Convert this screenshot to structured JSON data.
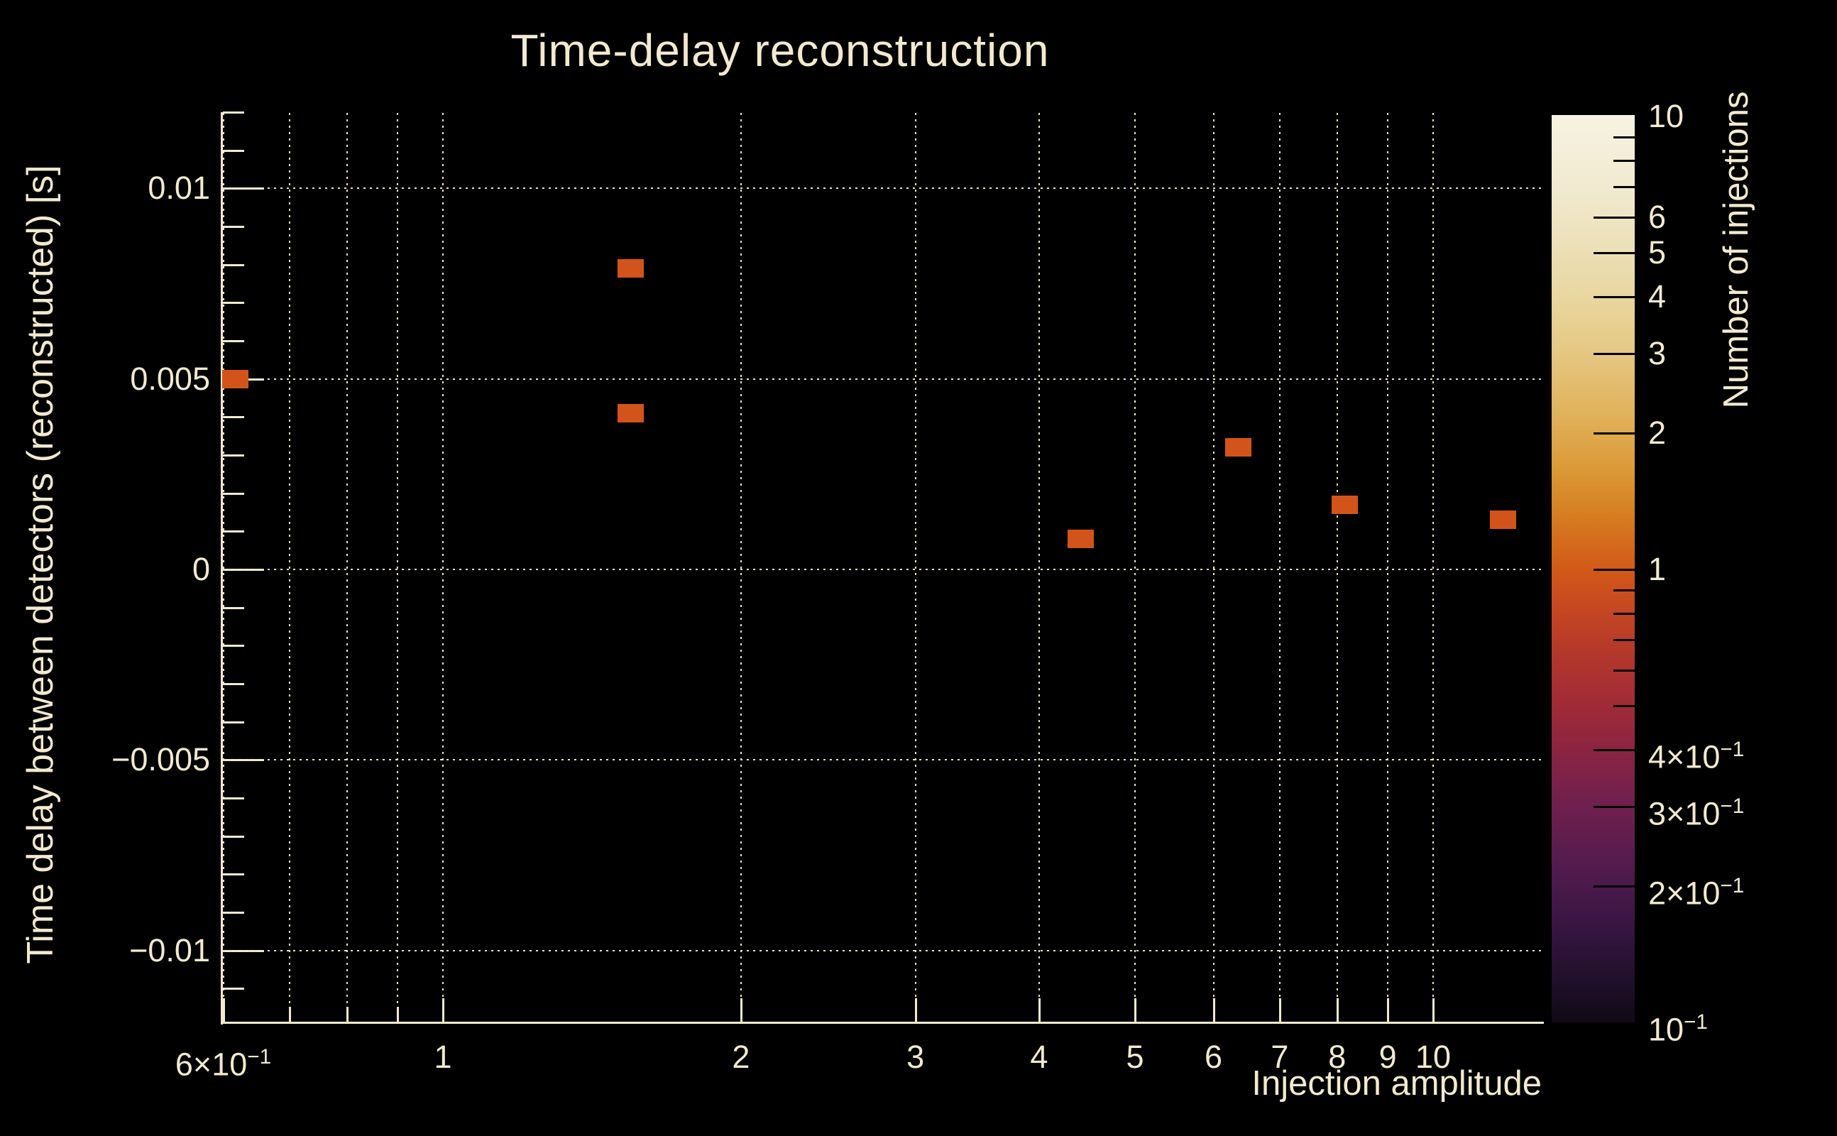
{
  "colors": {
    "background": "#000000",
    "text": "#f2e9cf",
    "grid": "#ece3c6",
    "cell": "#d3541a"
  },
  "chart_data": {
    "type": "heatmap",
    "title": "Time-delay reconstruction",
    "xlabel": "Injection amplitude",
    "ylabel": "Time delay between detectors (reconstructed) [s]",
    "zlabel": "Number of injections",
    "x_scale": "log",
    "x_range": [
      0.6,
      12.9
    ],
    "y_range": [
      -0.0119,
      0.0119
    ],
    "z_scale": "log",
    "z_range": [
      0.1,
      10
    ],
    "grid": true,
    "x_ticks": [
      {
        "v": 0.6,
        "label": "6×10",
        "sup": "−1"
      },
      {
        "v": 0.7
      },
      {
        "v": 0.8
      },
      {
        "v": 0.9
      },
      {
        "v": 1,
        "label": "1"
      },
      {
        "v": 2,
        "label": "2"
      },
      {
        "v": 3,
        "label": "3"
      },
      {
        "v": 4,
        "label": "4"
      },
      {
        "v": 5,
        "label": "5"
      },
      {
        "v": 6,
        "label": "6"
      },
      {
        "v": 7,
        "label": "7"
      },
      {
        "v": 8,
        "label": "8"
      },
      {
        "v": 9,
        "label": "9"
      },
      {
        "v": 10,
        "label": "10"
      }
    ],
    "y_ticks": [
      {
        "v": 0.012
      },
      {
        "v": 0.011
      },
      {
        "v": 0.01,
        "label": "0.01"
      },
      {
        "v": 0.009
      },
      {
        "v": 0.008
      },
      {
        "v": 0.007
      },
      {
        "v": 0.006
      },
      {
        "v": 0.005,
        "label": "0.005"
      },
      {
        "v": 0.004
      },
      {
        "v": 0.003
      },
      {
        "v": 0.002
      },
      {
        "v": 0.001
      },
      {
        "v": 0,
        "label": "0"
      },
      {
        "v": -0.001
      },
      {
        "v": -0.002
      },
      {
        "v": -0.003
      },
      {
        "v": -0.004
      },
      {
        "v": -0.005,
        "label": "−0.005"
      },
      {
        "v": -0.006
      },
      {
        "v": -0.007
      },
      {
        "v": -0.008
      },
      {
        "v": -0.009
      },
      {
        "v": -0.01,
        "label": "−0.01"
      },
      {
        "v": -0.011
      }
    ],
    "points": [
      {
        "x": 0.617,
        "y": 0.005,
        "count": 1
      },
      {
        "x": 1.545,
        "y": 0.0079,
        "count": 1
      },
      {
        "x": 1.545,
        "y": 0.0041,
        "count": 1
      },
      {
        "x": 4.4,
        "y": 0.0008,
        "count": 1
      },
      {
        "x": 6.35,
        "y": 0.0032,
        "count": 1
      },
      {
        "x": 8.13,
        "y": 0.0017,
        "count": 1
      },
      {
        "x": 11.75,
        "y": 0.0013,
        "count": 1
      }
    ],
    "colorbar": {
      "ticks": [
        {
          "v": 10,
          "label": "10",
          "noTick": true
        },
        {
          "v": 9
        },
        {
          "v": 8
        },
        {
          "v": 7
        },
        {
          "v": 6,
          "label": "6"
        },
        {
          "v": 5,
          "label": "5"
        },
        {
          "v": 4,
          "label": "4"
        },
        {
          "v": 3,
          "label": "3"
        },
        {
          "v": 2,
          "label": "2"
        },
        {
          "v": 1,
          "label": "1"
        },
        {
          "v": 0.9
        },
        {
          "v": 0.8
        },
        {
          "v": 0.7
        },
        {
          "v": 0.6
        },
        {
          "v": 0.5
        },
        {
          "v": 0.4,
          "label": "4×10",
          "sup": "−1"
        },
        {
          "v": 0.3,
          "label": "3×10",
          "sup": "−1"
        },
        {
          "v": 0.2,
          "label": "2×10",
          "sup": "−1"
        },
        {
          "v": 0.1,
          "label": "10",
          "sup": "−1",
          "noTick": true
        }
      ],
      "gradient": [
        [
          0,
          "#f7f3e3"
        ],
        [
          8,
          "#f1ead0"
        ],
        [
          15,
          "#ecdfb6"
        ],
        [
          20,
          "#e9d7a0"
        ],
        [
          26,
          "#e5c883"
        ],
        [
          33,
          "#e0b25c"
        ],
        [
          39,
          "#db9a37"
        ],
        [
          44,
          "#d67e22"
        ],
        [
          50,
          "#d25a18"
        ],
        [
          55,
          "#c34522"
        ],
        [
          60,
          "#b1362c"
        ],
        [
          65,
          "#a02b37"
        ],
        [
          70,
          "#8b2442"
        ],
        [
          76,
          "#6f204e"
        ],
        [
          83,
          "#521b4e"
        ],
        [
          90,
          "#351540"
        ],
        [
          96,
          "#1e0f28"
        ],
        [
          100,
          "#110a15"
        ]
      ]
    }
  }
}
